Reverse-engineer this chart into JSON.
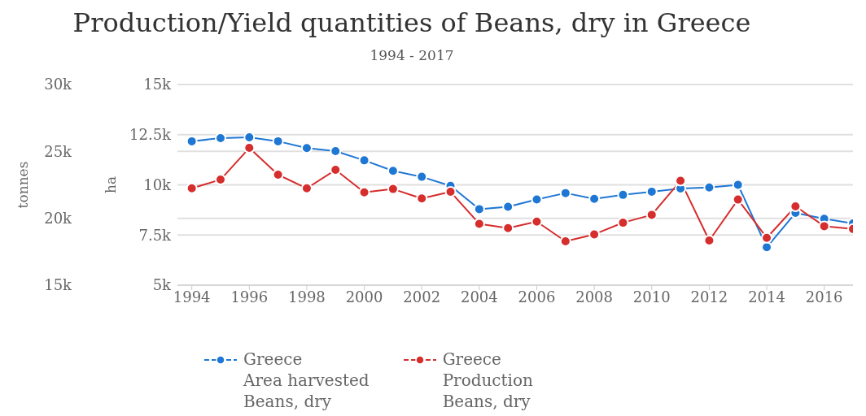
{
  "chart_data": {
    "type": "line",
    "title": "Production/Yield quantities of Beans, dry in Greece",
    "subtitle": "1994 - 2017",
    "ylabel": "ha",
    "y2label": "tonnes",
    "x": [
      1994,
      1995,
      1996,
      1997,
      1998,
      1999,
      2000,
      2001,
      2002,
      2003,
      2004,
      2005,
      2006,
      2007,
      2008,
      2009,
      2010,
      2011,
      2012,
      2013,
      2014,
      2015,
      2016,
      2017
    ],
    "series": [
      {
        "name": "Greece\nArea harvested\nBeans, dry",
        "color": "#1f77d4",
        "values": [
          12170,
          12330,
          12370,
          12170,
          11830,
          11680,
          11220,
          10700,
          10400,
          9950,
          8790,
          8910,
          9270,
          9590,
          9300,
          9500,
          9660,
          9820,
          9870,
          10000,
          6890,
          8600,
          8310,
          8080
        ]
      },
      {
        "name": "Greece\nProduction\nBeans, dry",
        "color": "#d62d2d",
        "axis": "y2",
        "values": [
          22240,
          22890,
          25260,
          23260,
          22240,
          23620,
          21940,
          22190,
          21480,
          21980,
          19590,
          19270,
          19750,
          18280,
          18800,
          19670,
          20260,
          22800,
          18340,
          21400,
          18540,
          20890,
          19410,
          19200
        ]
      }
    ],
    "xlim": [
      1993.5,
      2017
    ],
    "xticks": [
      1994,
      1996,
      1998,
      2000,
      2002,
      2004,
      2006,
      2008,
      2010,
      2012,
      2014,
      2016
    ],
    "ylim": [
      5000,
      15000
    ],
    "yticks": [
      {
        "value": 5000,
        "label": "5k"
      },
      {
        "value": 7500,
        "label": "7.5k"
      },
      {
        "value": 10000,
        "label": "10k"
      },
      {
        "value": 12500,
        "label": "12.5k"
      },
      {
        "value": 15000,
        "label": "15k"
      }
    ],
    "y2lim": [
      15000,
      30000
    ],
    "y2ticks": [
      {
        "value": 15000,
        "label": "15k"
      },
      {
        "value": 20000,
        "label": "20k"
      },
      {
        "value": 25000,
        "label": "25k"
      },
      {
        "value": 30000,
        "label": "30k"
      }
    ],
    "grid": "y",
    "legend": "bottom",
    "marker": "circle"
  }
}
